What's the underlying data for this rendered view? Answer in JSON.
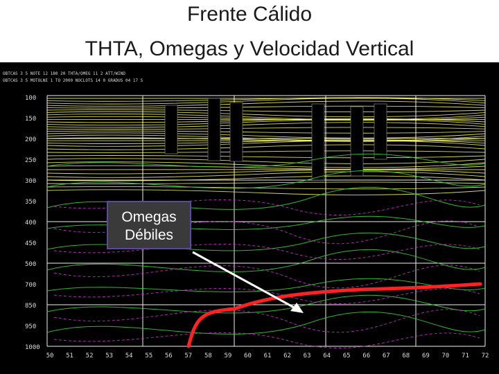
{
  "slide": {
    "title_line1": "Frente Cálido",
    "title_line2": "THTA, Omegas y Velocidad Vertical"
  },
  "plot": {
    "header_line1": "OBTCAS 3 5 NOTE 12 180 20 THTA/OMEG 11 2 ATT/WIND",
    "header_line2": "OBTCAS 3 5 MOTOLNE 1 TO 2000 NOCLOTS 14 0 GRADUS 04 17 S",
    "pressure_levels": [
      "100",
      "150",
      "200",
      "250",
      "300",
      "350",
      "400",
      "450",
      "500",
      "700",
      "850",
      "950",
      "1000"
    ],
    "x_labels": [
      "50",
      "51",
      "52",
      "53",
      "54",
      "55",
      "56",
      "57",
      "58",
      "59",
      "60",
      "61",
      "62",
      "63",
      "64",
      "65",
      "66",
      "67",
      "68",
      "69",
      "70",
      "71",
      "72"
    ],
    "grid_color": "#f0f0f0",
    "theta_color_upper": "#ffff66",
    "theta_color_lower": "#33cc33",
    "omega_color": "#cc33cc",
    "front_color": "#ff2222",
    "arrow_color": "#ffffff"
  },
  "annotation": {
    "line1": "Omegas",
    "line2": "Débiles"
  }
}
